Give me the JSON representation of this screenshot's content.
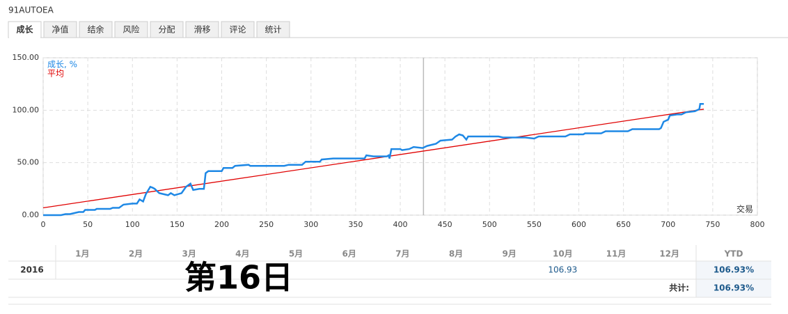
{
  "header": {
    "title": "91AUTOEA"
  },
  "tabs": [
    "成长",
    "净值",
    "结余",
    "风险",
    "分配",
    "滑移",
    "评论",
    "统计"
  ],
  "active_tab": 0,
  "chart_data": {
    "type": "line",
    "series": [
      {
        "name": "成长, %",
        "color": "#1e88e5",
        "x": [
          0,
          20,
          25,
          30,
          35,
          40,
          45,
          47,
          58,
          60,
          75,
          78,
          85,
          90,
          100,
          105,
          108,
          112,
          115,
          120,
          123,
          125,
          130,
          135,
          140,
          143,
          147,
          155,
          160,
          165,
          168,
          175,
          180,
          182,
          185,
          200,
          202,
          212,
          215,
          230,
          232,
          270,
          275,
          290,
          294,
          310,
          312,
          325,
          360,
          362,
          370,
          385,
          387,
          388,
          390,
          400,
          402,
          410,
          415,
          425,
          430,
          440,
          445,
          458,
          462,
          466,
          470,
          474,
          476,
          510,
          515,
          540,
          550,
          555,
          585,
          590,
          605,
          607,
          625,
          630,
          655,
          660,
          690,
          692,
          695,
          700,
          702,
          710,
          715,
          720,
          730,
          735,
          736,
          740
        ],
        "values": [
          0,
          0,
          1,
          1,
          2,
          3,
          3,
          5,
          5,
          6,
          6,
          7,
          7,
          10,
          11,
          11,
          15,
          13,
          20,
          27,
          26,
          25,
          21,
          20,
          19,
          21,
          19,
          21,
          27,
          30,
          24,
          25,
          25,
          40,
          42,
          42,
          45,
          45,
          47,
          48,
          47,
          47,
          48,
          48,
          51,
          51,
          53,
          54,
          54,
          57,
          56,
          56,
          57,
          54,
          63,
          63,
          62,
          63,
          65,
          64,
          66,
          68,
          71,
          72,
          75,
          77,
          76,
          72,
          75,
          75,
          74,
          74,
          73,
          75,
          75,
          77,
          77,
          78,
          78,
          80,
          80,
          82,
          82,
          83,
          89,
          91,
          95,
          96,
          96,
          98,
          99,
          101,
          106,
          106
        ]
      },
      {
        "name": "平均",
        "color": "#e00000",
        "x": [
          0,
          740
        ],
        "values": [
          7,
          101
        ]
      }
    ],
    "xlabel": "交易",
    "xlim": [
      0,
      800
    ],
    "xticks": [
      0,
      50,
      100,
      150,
      200,
      250,
      300,
      350,
      400,
      450,
      500,
      550,
      600,
      650,
      700,
      750,
      800
    ],
    "ylim": [
      0,
      150
    ],
    "yticks": [
      {
        "value": 0,
        "label": "0.00"
      },
      {
        "value": 50,
        "label": "50.00"
      },
      {
        "value": 100,
        "label": "100.00"
      },
      {
        "value": 150,
        "label": "150.00"
      }
    ],
    "grid": true,
    "marker_x": 426
  },
  "table": {
    "months": [
      "1月",
      "2月",
      "3月",
      "4月",
      "5月",
      "6月",
      "7月",
      "8月",
      "9月",
      "10月",
      "11月",
      "12月"
    ],
    "ytd_header": "YTD",
    "rows": [
      {
        "year": "2016",
        "cells": [
          null,
          null,
          null,
          null,
          null,
          null,
          null,
          null,
          null,
          "106.93",
          null,
          null
        ],
        "ytd": "106.93%"
      }
    ],
    "total": {
      "label": "共计:",
      "value": "106.93%"
    }
  },
  "overlay": "第16日"
}
